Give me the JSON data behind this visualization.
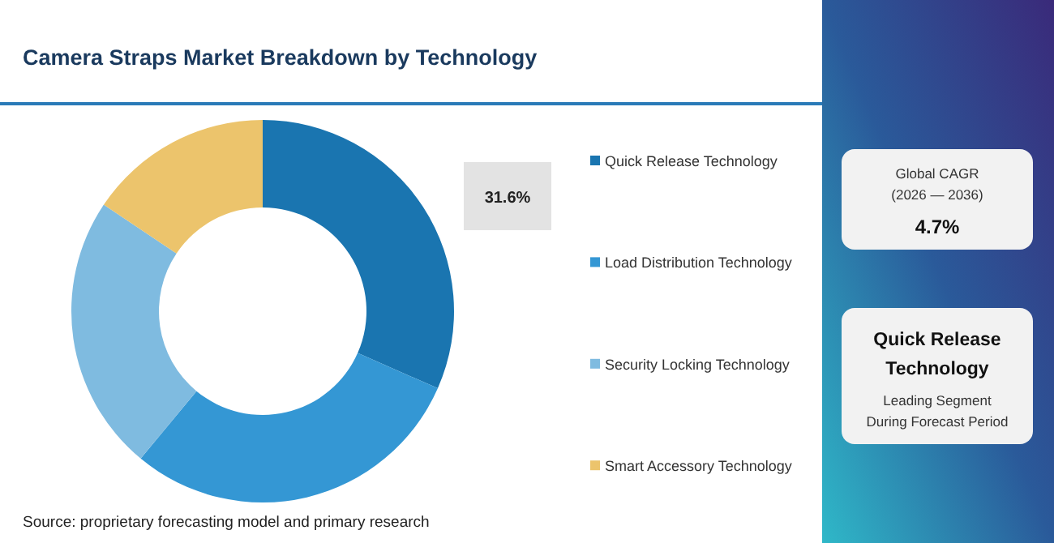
{
  "chart_data": {
    "type": "donut",
    "title": "Camera Straps Market Breakdown by Technology",
    "categories": [
      "Quick Release Technology",
      "Load Distribution Technology",
      "Security Locking Technology",
      "Smart Accessory Technology"
    ],
    "values": [
      31.6,
      29.4,
      23.4,
      15.6
    ],
    "colors": [
      "#1a75b0",
      "#3497d4",
      "#7fbbe0",
      "#ecc46c"
    ],
    "value_labels": [
      "31.6%",
      null,
      null,
      null
    ],
    "legend": "right",
    "annotations": [
      "Source: proprietary forecasting model and primary research",
      "Global CAGR",
      "(2026 — 2036)",
      "4.7%",
      "Quick Release Technology",
      "Leading Segment",
      "During Forecast Period"
    ]
  }
}
